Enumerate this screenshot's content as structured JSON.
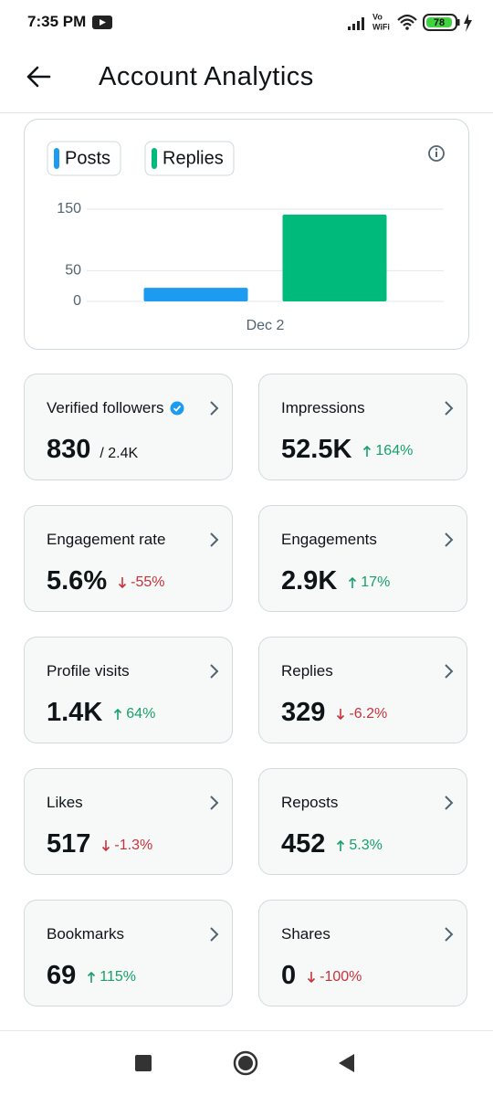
{
  "status_bar": {
    "time": "7:35 PM",
    "vo": "Vo",
    "wifi": "WiFi",
    "battery": "78"
  },
  "header": {
    "title": "Account Analytics"
  },
  "chart_data": {
    "type": "bar",
    "categories": [
      "Dec 2"
    ],
    "series": [
      {
        "name": "Posts",
        "color": "#1d9bf0",
        "values": [
          22
        ]
      },
      {
        "name": "Replies",
        "color": "#00ba7c",
        "values": [
          141
        ]
      }
    ],
    "ylim": [
      0,
      150
    ],
    "yticks": [
      0,
      50,
      150
    ],
    "grid": true
  },
  "metrics": [
    {
      "label": "Verified followers",
      "verified": true,
      "value": "830",
      "total": "/ 2.4K"
    },
    {
      "label": "Impressions",
      "value": "52.5K",
      "change": "164%",
      "trend": "up"
    },
    {
      "label": "Engagement rate",
      "value": "5.6%",
      "change": "-55%",
      "trend": "down"
    },
    {
      "label": "Engagements",
      "value": "2.9K",
      "change": "17%",
      "trend": "up"
    },
    {
      "label": "Profile visits",
      "value": "1.4K",
      "change": "64%",
      "trend": "up"
    },
    {
      "label": "Replies",
      "value": "329",
      "change": "-6.2%",
      "trend": "down"
    },
    {
      "label": "Likes",
      "value": "517",
      "change": "-1.3%",
      "trend": "down"
    },
    {
      "label": "Reposts",
      "value": "452",
      "change": "5.3%",
      "trend": "up"
    },
    {
      "label": "Bookmarks",
      "value": "69",
      "change": "115%",
      "trend": "up"
    },
    {
      "label": "Shares",
      "value": "0",
      "change": "-100%",
      "trend": "down"
    }
  ]
}
